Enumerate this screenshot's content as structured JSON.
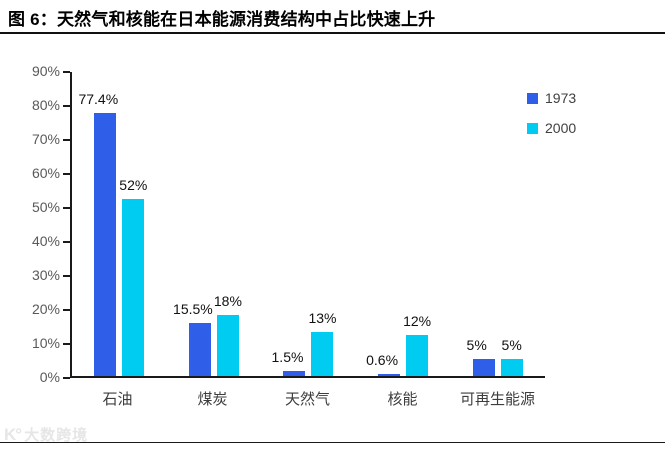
{
  "title": "图 6：天然气和核能在日本能源消费结构中占比快速上升",
  "watermark": {
    "logo": "K°",
    "text": "大数跨境"
  },
  "legend": [
    {
      "label": "1973",
      "color": "#2F5FE8"
    },
    {
      "label": "2000",
      "color": "#00CCF2"
    }
  ],
  "colors": {
    "series_1973": "#2F5FE8",
    "series_2000": "#00CCF2",
    "axis": "#1a1a1a",
    "y_tick_label": "#595959",
    "x_category_label": "#3d3d3d",
    "data_label": "#111111"
  },
  "chart_data": {
    "type": "bar",
    "title": "图 6：天然气和核能在日本能源消费结构中占比快速上升",
    "categories": [
      "石油",
      "煤炭",
      "天然气",
      "核能",
      "可再生能源"
    ],
    "series": [
      {
        "name": "1973",
        "color": "#2F5FE8",
        "values": [
          77.4,
          15.5,
          1.5,
          0.6,
          5
        ],
        "labels": [
          "77.4%",
          "15.5%",
          "1.5%",
          "0.6%",
          "5%"
        ]
      },
      {
        "name": "2000",
        "color": "#00CCF2",
        "values": [
          52,
          18,
          13,
          12,
          5
        ],
        "labels": [
          "52%",
          "18%",
          "13%",
          "12%",
          "5%"
        ]
      }
    ],
    "xlabel": "",
    "ylabel": "",
    "y_axis": {
      "min": 0,
      "max": 90,
      "step": 10,
      "tick_labels": [
        "0%",
        "10%",
        "20%",
        "30%",
        "40%",
        "50%",
        "60%",
        "70%",
        "80%",
        "90%"
      ]
    },
    "grid": false,
    "legend_position": "top-right"
  }
}
